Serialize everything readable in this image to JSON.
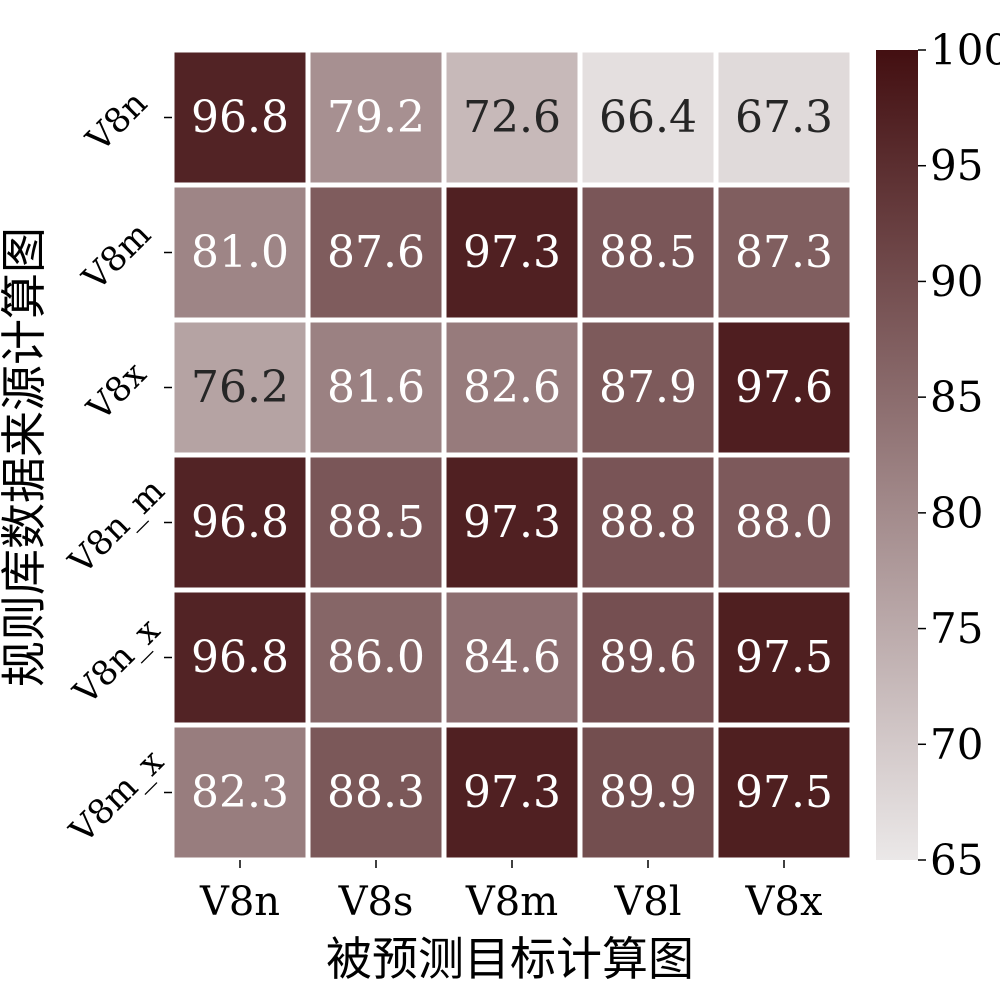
{
  "chart_data": {
    "type": "heatmap",
    "title": "",
    "xlabel": "被预测目标计算图",
    "ylabel": "规则库数据来源计算图",
    "x_categories": [
      "V8n",
      "V8s",
      "V8m",
      "V8l",
      "V8x"
    ],
    "y_categories": [
      "V8n",
      "V8m",
      "V8x",
      "V8n_m",
      "V8n_x",
      "V8m_x"
    ],
    "values": [
      [
        96.8,
        79.2,
        72.6,
        66.4,
        67.3
      ],
      [
        81.0,
        87.6,
        97.3,
        88.5,
        87.3
      ],
      [
        76.2,
        81.6,
        82.6,
        87.9,
        97.6
      ],
      [
        96.8,
        88.5,
        97.3,
        88.8,
        88.0
      ],
      [
        96.8,
        86.0,
        84.6,
        89.6,
        97.5
      ],
      [
        82.3,
        88.3,
        97.3,
        89.9,
        97.5
      ]
    ],
    "value_format": "0.1f",
    "colorbar": {
      "min": 65,
      "max": 100,
      "ticks": [
        65,
        70,
        75,
        80,
        85,
        90,
        95,
        100
      ],
      "color_low": "#ebe8e8",
      "color_high": "#430f11"
    },
    "annot_color_dark_text": "#262626",
    "annot_color_light_text": "#ffffff",
    "cell_border_color": "#ffffff"
  }
}
